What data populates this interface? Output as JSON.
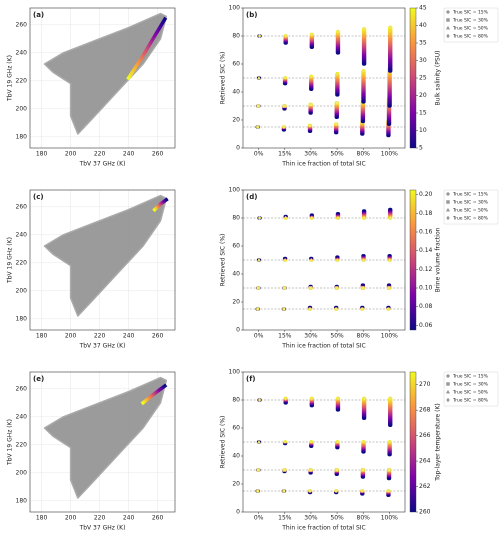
{
  "chart_data": [
    {
      "type": "scatter",
      "panel_label": "(a)",
      "xlabel": "TbV 37 GHz (K)",
      "ylabel": "TbV 19 GHz (K)",
      "xlim": [
        172,
        272
      ],
      "ylim": [
        172,
        272
      ],
      "xticks": [
        180,
        200,
        220,
        240,
        260
      ],
      "yticks": [
        180,
        200,
        220,
        240,
        260
      ],
      "cloud": {
        "x": [
          205,
          215,
          232,
          250,
          262,
          266,
          262,
          240,
          215,
          195,
          182,
          188,
          200,
          200
        ],
        "y": [
          182,
          193,
          212,
          232,
          250,
          266,
          268,
          258,
          248,
          240,
          232,
          226,
          218,
          195
        ]
      },
      "track": {
        "x": [
          240,
          250,
          258,
          265
        ],
        "y": [
          222,
          238,
          252,
          264
        ]
      }
    },
    {
      "type": "range",
      "panel_label": "(b)",
      "xlabel": "Thin ice fraction of total SIC",
      "ylabel": "Retrieved SIC (%)",
      "categories": [
        "0%",
        "15%",
        "30%",
        "50%",
        "80%",
        "100%"
      ],
      "ylim": [
        0,
        100
      ],
      "yticks": [
        0,
        20,
        40,
        60,
        80,
        100
      ],
      "reference_lines": [
        15,
        30,
        50,
        80
      ],
      "series": [
        {
          "name": "True SIC = 15%",
          "marker": "circle",
          "low": [
            15,
            13,
            12,
            11,
            10,
            9
          ],
          "high": [
            15,
            15,
            16,
            17,
            18,
            19
          ]
        },
        {
          "name": "True SIC = 30%",
          "marker": "square",
          "low": [
            30,
            28,
            25,
            22,
            19,
            17
          ],
          "high": [
            30,
            30,
            31,
            32,
            33,
            35
          ]
        },
        {
          "name": "True SIC = 50%",
          "marker": "triangle",
          "low": [
            50,
            46,
            42,
            38,
            33,
            30
          ],
          "high": [
            50,
            50,
            51,
            53,
            55,
            57
          ]
        },
        {
          "name": "True SIC = 80%",
          "marker": "diamond",
          "low": [
            80,
            75,
            72,
            68,
            60,
            55
          ],
          "high": [
            80,
            80,
            81,
            83,
            85,
            86
          ]
        }
      ],
      "colorbar": {
        "label": "Bulk salinity (PSU)",
        "lim": [
          5,
          45
        ],
        "ticks": [
          5,
          10,
          15,
          20,
          25,
          30,
          35,
          40,
          45
        ]
      }
    },
    {
      "type": "scatter",
      "panel_label": "(c)",
      "xlabel": "TbV 37 GHz (K)",
      "ylabel": "TbV 19 GHz (K)",
      "xlim": [
        172,
        272
      ],
      "ylim": [
        172,
        272
      ],
      "xticks": [
        180,
        200,
        220,
        240,
        260
      ],
      "yticks": [
        180,
        200,
        220,
        240,
        260
      ],
      "cloud": {
        "x": [
          205,
          215,
          232,
          250,
          262,
          266,
          262,
          240,
          215,
          195,
          182,
          188,
          200,
          200
        ],
        "y": [
          182,
          193,
          212,
          232,
          250,
          266,
          268,
          258,
          248,
          240,
          232,
          226,
          218,
          195
        ]
      },
      "track": {
        "x": [
          258,
          262,
          266
        ],
        "y": [
          258,
          262,
          265
        ]
      }
    },
    {
      "type": "range",
      "panel_label": "(d)",
      "xlabel": "Thin ice fraction of total SIC",
      "ylabel": "Retrieved SIC (%)",
      "categories": [
        "0%",
        "15%",
        "30%",
        "50%",
        "80%",
        "100%"
      ],
      "ylim": [
        0,
        100
      ],
      "yticks": [
        0,
        20,
        40,
        60,
        80,
        100
      ],
      "reference_lines": [
        15,
        30,
        50,
        80
      ],
      "series": [
        {
          "name": "True SIC = 15%",
          "marker": "circle",
          "low": [
            15,
            15,
            15,
            15,
            15,
            15
          ],
          "high": [
            15,
            15,
            16,
            16,
            16,
            16
          ]
        },
        {
          "name": "True SIC = 30%",
          "marker": "square",
          "low": [
            30,
            30,
            30,
            30,
            30,
            30
          ],
          "high": [
            30,
            30,
            31,
            31,
            32,
            32
          ]
        },
        {
          "name": "True SIC = 50%",
          "marker": "triangle",
          "low": [
            50,
            50,
            50,
            50,
            50,
            50
          ],
          "high": [
            50,
            51,
            51,
            52,
            53,
            53
          ]
        },
        {
          "name": "True SIC = 80%",
          "marker": "diamond",
          "low": [
            80,
            80,
            80,
            80,
            80,
            80
          ],
          "high": [
            80,
            81,
            82,
            83,
            85,
            86
          ]
        }
      ],
      "colorbar": {
        "label": "Brine volume fraction",
        "lim": [
          0.055,
          0.205
        ],
        "ticks": [
          0.06,
          0.08,
          {
            "value": 0.1,
            "label": "0.10"
          },
          0.12,
          0.14,
          0.16,
          0.18,
          {
            "value": 0.2,
            "label": "0.20"
          }
        ]
      }
    },
    {
      "type": "scatter",
      "panel_label": "(e)",
      "xlabel": "TbV 37 GHz (K)",
      "ylabel": "TbV 19 GHz (K)",
      "xlim": [
        172,
        272
      ],
      "ylim": [
        172,
        272
      ],
      "xticks": [
        180,
        200,
        220,
        240,
        260
      ],
      "yticks": [
        180,
        200,
        220,
        240,
        260
      ],
      "cloud": {
        "x": [
          205,
          215,
          232,
          250,
          262,
          266,
          262,
          240,
          215,
          195,
          182,
          188,
          200,
          200
        ],
        "y": [
          182,
          193,
          212,
          232,
          250,
          266,
          268,
          258,
          248,
          240,
          232,
          226,
          218,
          195
        ]
      },
      "track": {
        "x": [
          250,
          256,
          261,
          265
        ],
        "y": [
          250,
          255,
          259,
          262
        ]
      }
    },
    {
      "type": "range",
      "panel_label": "(f)",
      "xlabel": "Thin ice fraction of total SIC",
      "ylabel": "Retrieved SIC (%)",
      "categories": [
        "0%",
        "15%",
        "30%",
        "50%",
        "80%",
        "100%"
      ],
      "ylim": [
        0,
        100
      ],
      "yticks": [
        0,
        20,
        40,
        60,
        80,
        100
      ],
      "reference_lines": [
        15,
        30,
        50,
        80
      ],
      "series": [
        {
          "name": "True SIC = 15%",
          "marker": "circle",
          "low": [
            15,
            15,
            14,
            14,
            13,
            12
          ],
          "high": [
            15,
            15,
            15,
            15,
            15,
            15
          ]
        },
        {
          "name": "True SIC = 30%",
          "marker": "square",
          "low": [
            30,
            29,
            28,
            27,
            25,
            24
          ],
          "high": [
            30,
            30,
            30,
            30,
            30,
            30
          ]
        },
        {
          "name": "True SIC = 50%",
          "marker": "triangle",
          "low": [
            50,
            49,
            47,
            46,
            43,
            41
          ],
          "high": [
            50,
            50,
            50,
            50,
            50,
            50
          ]
        },
        {
          "name": "True SIC = 80%",
          "marker": "diamond",
          "low": [
            80,
            78,
            76,
            73,
            67,
            62
          ],
          "high": [
            80,
            81,
            81,
            81,
            81,
            81
          ]
        }
      ],
      "colorbar": {
        "label": "Top-layer temperature (K)",
        "lim": [
          260,
          271
        ],
        "ticks": [
          260,
          262,
          264,
          266,
          268,
          270
        ]
      }
    }
  ]
}
